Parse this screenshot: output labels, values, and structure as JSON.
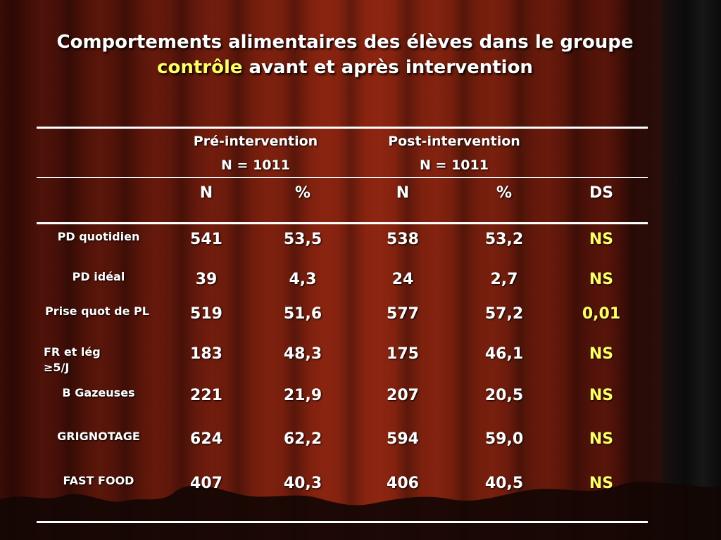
{
  "title": {
    "line1": "Comportements alimentaires des élèves dans le groupe",
    "line2_highlight": "contrôle",
    "line2_rest": " avant et après intervention"
  },
  "header": {
    "pre": {
      "label": "Pré-intervention",
      "n": "N =  1011"
    },
    "post": {
      "label": "Post-intervention",
      "n": "N = 1011"
    },
    "columns": [
      "N",
      "%",
      "N",
      "%",
      "DS"
    ]
  },
  "rows": [
    {
      "label": "PD quotidien",
      "n1": "541",
      "p1": "53,5",
      "n2": "538",
      "p2": "53,2",
      "ds": "NS"
    },
    {
      "label": "PD idéal",
      "n1": "39",
      "p1": "4,3",
      "n2": "24",
      "p2": "2,7",
      "ds": "NS"
    },
    {
      "label": "Prise quot de PL",
      "n1": "519",
      "p1": "51,6",
      "n2": "577",
      "p2": "57,2",
      "ds": "0,01"
    },
    {
      "label": "FR et  lég ≥5/J",
      "n1": "183",
      "p1": "48,3",
      "n2": "175",
      "p2": "46,1",
      "ds": "NS"
    },
    {
      "label": "B Gazeuses",
      "n1": "221",
      "p1": "21,9",
      "n2": "207",
      "p2": "20,5",
      "ds": "NS"
    },
    {
      "label": "GRIGNOTAGE",
      "n1": "624",
      "p1": "62,2",
      "n2": "594",
      "p2": "59,0",
      "ds": "NS"
    },
    {
      "label": "FAST FOOD",
      "n1": "407",
      "p1": "40,3",
      "n2": "406",
      "p2": "40,5",
      "ds": "NS"
    }
  ],
  "colors": {
    "highlight": "#ffff66",
    "text": "#ffffff",
    "curtain": "#7a1e0c"
  }
}
